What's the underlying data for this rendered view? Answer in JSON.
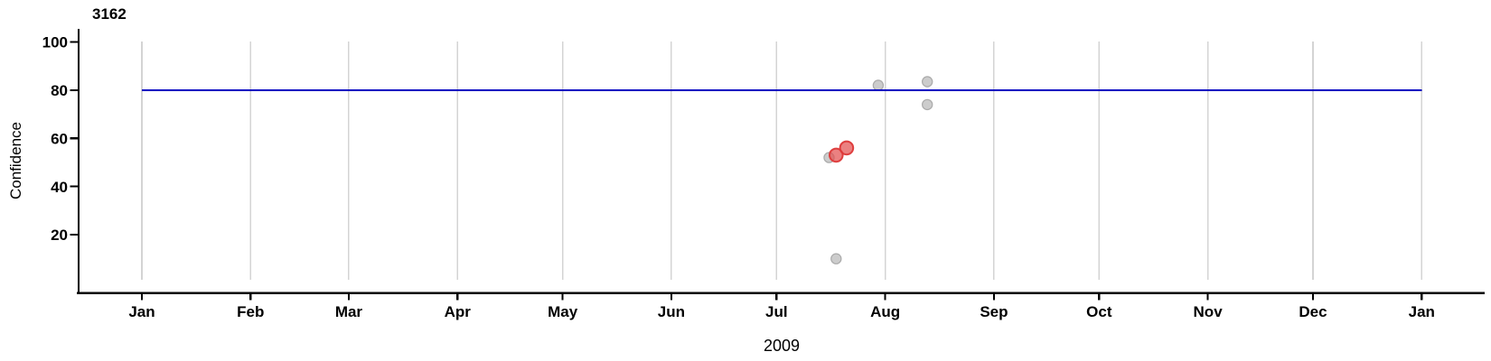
{
  "chart_data": {
    "type": "scatter",
    "title": "3162",
    "xlabel": "2009",
    "ylabel": "Confidence",
    "x_axis": {
      "unit": "month",
      "tick_labels": [
        "Jan",
        "Feb",
        "Mar",
        "Apr",
        "May",
        "Jun",
        "Jul",
        "Aug",
        "Sep",
        "Oct",
        "Nov",
        "Dec",
        "Jan"
      ],
      "range": [
        "2009-01-01",
        "2010-01-01"
      ]
    },
    "y_axis": {
      "ticks": [
        20,
        40,
        60,
        80,
        100
      ],
      "range": [
        0,
        100
      ]
    },
    "grid": {
      "vertical_monthly": true,
      "color": "#d4d4d4"
    },
    "reference_line": {
      "orientation": "horizontal",
      "value": 80,
      "color": "#0000c2"
    },
    "series": [
      {
        "name": "observations",
        "marker": "circle",
        "marker_radius": 5.6,
        "fill": "#c6c6c6",
        "stroke": "#a8a8a8",
        "points": [
          {
            "date": "2009-07-16",
            "confidence": 52
          },
          {
            "date": "2009-07-18",
            "confidence": 10
          },
          {
            "date": "2009-07-30",
            "confidence": 82
          },
          {
            "date": "2009-08-13",
            "confidence": 83.5
          },
          {
            "date": "2009-08-13",
            "confidence": 74
          }
        ]
      },
      {
        "name": "highlighted-observations",
        "marker": "circle",
        "marker_radius": 7.3,
        "fill": "#e35050",
        "stroke": "#dd3838",
        "points": [
          {
            "date": "2009-07-18",
            "confidence": 53
          },
          {
            "date": "2009-07-21",
            "confidence": 56
          }
        ]
      }
    ]
  }
}
